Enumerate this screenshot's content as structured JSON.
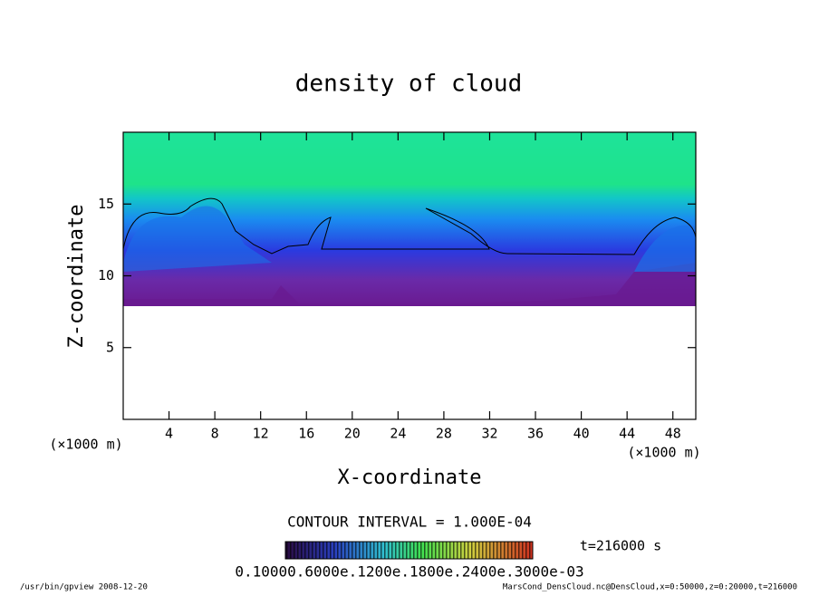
{
  "chart_data": {
    "type": "contour",
    "title": "density of cloud",
    "x_label": "X-coordinate",
    "y_label": "Z-coordinate",
    "x_unit": "(×1000 m)",
    "y_unit": "(×1000 m)",
    "xlim": [
      0,
      50
    ],
    "xticks": [
      4,
      8,
      12,
      16,
      20,
      24,
      28,
      32,
      36,
      40,
      44,
      48
    ],
    "ylim": [
      0,
      20
    ],
    "yticks": [
      5,
      10,
      15
    ],
    "contour_interval": "CONTOUR INTERVAL = 1.000E-04",
    "time": "t=216000 s",
    "colorbar_labels": "0.10000.6000e.1200e.1800e.2400e.3000e-03",
    "footer_left": "/usr/bin/gpview  2008-12-20",
    "footer_right": "MarsCond_DensCloud.nc@DensCloud,x=0:50000,z=0:20000,t=216000"
  }
}
